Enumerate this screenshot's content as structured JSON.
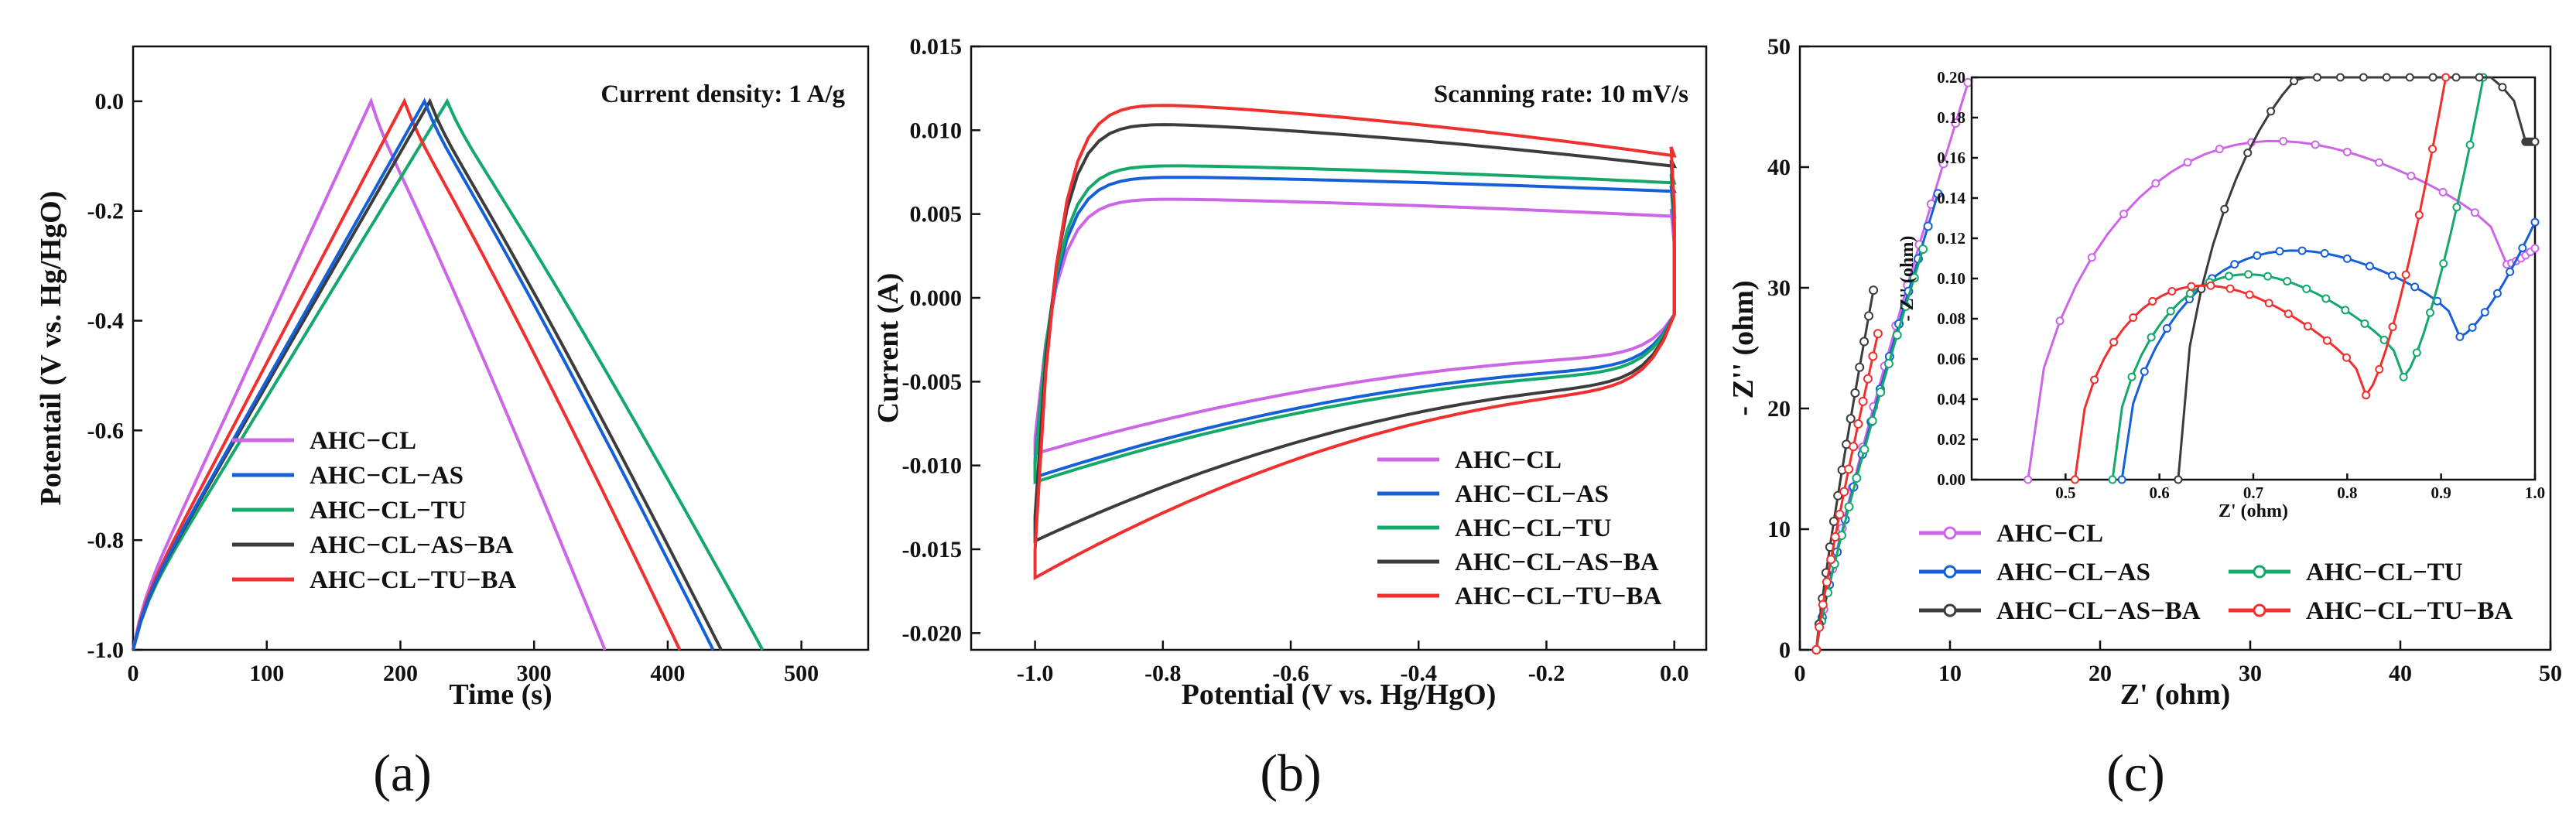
{
  "colors": {
    "AHC-CL": "#cc66e6",
    "AHC-CL-AS": "#1560d8",
    "AHC-CL-TU": "#14a86b",
    "AHC-CL-AS-BA": "#3c3c3c",
    "AHC-CL-TU-BA": "#f0302e"
  },
  "panel_labels": [
    "(a)",
    "(b)",
    "(c)"
  ],
  "chart_data": [
    {
      "id": "a",
      "type": "line",
      "title": "",
      "xlabel": "Time (s)",
      "ylabel": "Potentail (V vs. Hg/HgO)",
      "annotation": "Current density: 1 A/g",
      "xlim": [
        0,
        550
      ],
      "ylim": [
        -1.0,
        0.1
      ],
      "xticks": [
        "0",
        "100",
        "200",
        "300",
        "400",
        "500"
      ],
      "yticks": [
        "-1.0",
        "-0.8",
        "-0.6",
        "-0.4",
        "-0.2",
        "0.0"
      ],
      "legend_position": "bottom-left",
      "series": [
        {
          "name": "AHC−CL",
          "key": "AHC-CL",
          "charge_end": 178,
          "discharge_end": 353
        },
        {
          "name": "AHC−CL−AS",
          "key": "AHC-CL-AS",
          "charge_end": 218,
          "discharge_end": 434
        },
        {
          "name": "AHC−CL−TU",
          "key": "AHC-CL-TU",
          "charge_end": 235,
          "discharge_end": 471
        },
        {
          "name": "AHC−CL−AS−BA",
          "key": "AHC-CL-AS-BA",
          "charge_end": 222,
          "discharge_end": 440
        },
        {
          "name": "AHC−CL−TU−BA",
          "key": "AHC-CL-TU-BA",
          "charge_end": 203,
          "discharge_end": 409
        }
      ]
    },
    {
      "id": "b",
      "type": "line",
      "title": "",
      "xlabel": "Potential (V vs. Hg/HgO)",
      "ylabel": "Current (A)",
      "annotation": "Scanning rate: 10 mV/s",
      "xlim": [
        -1.1,
        0.05
      ],
      "ylim": [
        -0.021,
        0.015
      ],
      "xticks": [
        "-1.0",
        "-0.8",
        "-0.6",
        "-0.4",
        "-0.2",
        "0.0"
      ],
      "yticks": [
        "-0.020",
        "-0.015",
        "-0.010",
        "-0.005",
        "0.000",
        "0.005",
        "0.010",
        "0.015"
      ],
      "legend_position": "bottom-right",
      "series": [
        {
          "name": "AHC−CL",
          "key": "AHC-CL",
          "upper_peak": 0.006,
          "upper_end": 0.0048,
          "lower_start": -0.0093,
          "lower_end": -0.0035,
          "max": 0.0053
        },
        {
          "name": "AHC−CL−AS",
          "key": "AHC-CL-AS",
          "upper_peak": 0.0073,
          "upper_end": 0.0063,
          "lower_start": -0.0107,
          "lower_end": -0.0042,
          "max": 0.0067
        },
        {
          "name": "AHC−CL−TU",
          "key": "AHC-CL-TU",
          "upper_peak": 0.008,
          "upper_end": 0.0068,
          "lower_start": -0.011,
          "lower_end": -0.0045,
          "max": 0.0074
        },
        {
          "name": "AHC−CL−AS−BA",
          "key": "AHC-CL-AS-BA",
          "upper_peak": 0.0106,
          "upper_end": 0.0077,
          "lower_start": -0.0145,
          "lower_end": -0.0052,
          "max": 0.0082
        },
        {
          "name": "AHC−CL−TU−BA",
          "key": "AHC-CL-TU-BA",
          "upper_peak": 0.0118,
          "upper_end": 0.0083,
          "lower_start": -0.0167,
          "lower_end": -0.0055,
          "max": 0.009
        }
      ]
    },
    {
      "id": "c",
      "type": "scatter",
      "title": "",
      "xlabel": "Z' (ohm)",
      "ylabel": "- Z'' (ohm)",
      "xlim": [
        0,
        50
      ],
      "ylim": [
        0,
        50
      ],
      "xticks": [
        "0",
        "10",
        "20",
        "30",
        "40",
        "50"
      ],
      "yticks": [
        "0",
        "10",
        "20",
        "30",
        "40",
        "50"
      ],
      "legend_position": "bottom-left",
      "series": [
        {
          "name": "AHC−CL",
          "key": "AHC-CL",
          "end": [
            11.2,
            47.0
          ]
        },
        {
          "name": "AHC−CL−AS",
          "key": "AHC-CL-AS",
          "end": [
            9.2,
            37.8
          ]
        },
        {
          "name": "AHC−CL−TU",
          "key": "AHC-CL-TU",
          "end": [
            8.2,
            33.2
          ]
        },
        {
          "name": "AHC−CL−AS−BA",
          "key": "AHC-CL-AS-BA",
          "end": [
            4.9,
            29.8
          ]
        },
        {
          "name": "AHC−CL−TU−BA",
          "key": "AHC-CL-TU-BA",
          "end": [
            5.2,
            26.2
          ]
        }
      ],
      "inset": {
        "xlabel": "Z' (ohm)",
        "ylabel": "- Z'' (ohm)",
        "xlim": [
          0.4,
          1.0
        ],
        "ylim": [
          0,
          0.2
        ],
        "xticks": [
          "0.5",
          "0.6",
          "0.7",
          "0.8",
          "0.9",
          "1.0"
        ],
        "yticks": [
          "0.00",
          "0.02",
          "0.04",
          "0.06",
          "0.08",
          "0.10",
          "0.12",
          "0.14",
          "0.16",
          "0.18",
          "0.20"
        ],
        "series": [
          {
            "key": "AHC-CL",
            "start": 0.46,
            "arc_peak": [
              0.71,
              0.164
            ],
            "min": [
              0.97,
              0.107
            ],
            "end": [
              1.0,
              0.115
            ]
          },
          {
            "key": "AHC-CL-AS",
            "start": 0.56,
            "arc_peak": [
              0.74,
              0.112
            ],
            "min": [
              0.92,
              0.071
            ],
            "end": [
              1.0,
              0.128
            ]
          },
          {
            "key": "AHC-CL-TU",
            "start": 0.55,
            "arc_peak": [
              0.68,
              0.109
            ],
            "min": [
              0.86,
              0.051
            ],
            "end": [
              0.945,
              0.2
            ]
          },
          {
            "key": "AHC-CL-AS-BA",
            "start": 0.62,
            "arc_peak": [
              0.87,
              0.191
            ],
            "min": [
              0.99,
              0.168
            ],
            "end": [
              1.0,
              0.168
            ]
          },
          {
            "key": "AHC-CL-TU-BA",
            "start": 0.51,
            "arc_peak": [
              0.65,
              0.107
            ],
            "min": [
              0.82,
              0.042
            ],
            "end": [
              0.905,
              0.2
            ]
          }
        ]
      }
    }
  ]
}
